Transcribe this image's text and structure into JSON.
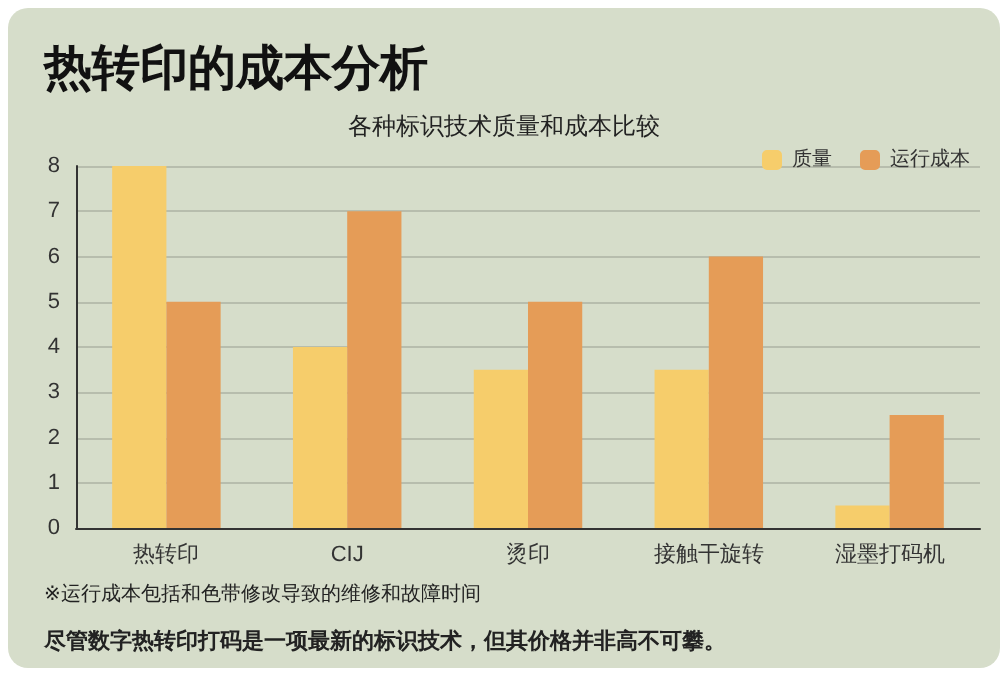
{
  "chart_data": {
    "type": "bar",
    "title": "热转印的成本分析",
    "subtitle": "各种标识技术质量和成本比较",
    "categories": [
      "热转印",
      "CIJ",
      "烫印",
      "接触干旋转",
      "湿墨打码机"
    ],
    "series": [
      {
        "name": "质量",
        "color": "#f6cd6b",
        "values": [
          8,
          4,
          3.5,
          3.5,
          0.5
        ]
      },
      {
        "name": "运行成本",
        "color": "#e59c57",
        "values": [
          5,
          7,
          5,
          6,
          2.5
        ]
      }
    ],
    "ylim": [
      0,
      8
    ],
    "yticks": [
      0,
      1,
      2,
      3,
      4,
      5,
      6,
      7,
      8
    ],
    "grid": "y",
    "legend": "top right",
    "annotations": [
      "※运行成本包括和色带修改导致的维修和故障时间",
      "尽管数字热转印打码是一项最新的标识技术，但其价格并非高不可攀。"
    ]
  }
}
